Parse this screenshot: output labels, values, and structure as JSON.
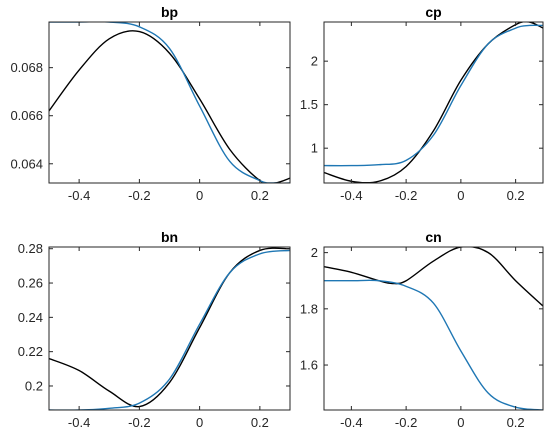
{
  "colors": {
    "black_series": "#000000",
    "blue_series": "#1f77b4",
    "axes": "#262626"
  },
  "chart_data": [
    {
      "type": "line",
      "title": "bp",
      "xlim": [
        -0.5,
        0.3
      ],
      "ylim": [
        0.0632,
        0.0699
      ],
      "xticks": [
        -0.4,
        -0.2,
        0,
        0.2
      ],
      "xtick_labels": [
        "-0.4",
        "-0.2",
        "0",
        "0.2"
      ],
      "yticks": [
        0.064,
        0.066,
        0.068
      ],
      "ytick_labels": [
        "0.064",
        "0.066",
        "0.068"
      ],
      "series": [
        {
          "color": "#000000",
          "x": [
            -0.5,
            -0.4,
            -0.3,
            -0.2,
            -0.1,
            0,
            0.1,
            0.2,
            0.25,
            0.3
          ],
          "y": [
            0.0662,
            0.0679,
            0.0692,
            0.0695,
            0.0686,
            0.0667,
            0.0646,
            0.0633,
            0.0632,
            0.0634
          ]
        },
        {
          "color": "#1f77b4",
          "x": [
            -0.5,
            -0.4,
            -0.3,
            -0.2,
            -0.1,
            0,
            0.1,
            0.2,
            0.25,
            0.3
          ],
          "y": [
            0.0699,
            0.0699,
            0.0699,
            0.0697,
            0.0688,
            0.0664,
            0.0641,
            0.0633,
            0.0632,
            0.0632
          ]
        }
      ]
    },
    {
      "type": "line",
      "title": "cp",
      "xlim": [
        -0.5,
        0.3
      ],
      "ylim": [
        0.6,
        2.45
      ],
      "xticks": [
        -0.4,
        -0.2,
        0,
        0.2
      ],
      "xtick_labels": [
        "-0.4",
        "-0.2",
        "0",
        "0.2"
      ],
      "yticks": [
        1,
        1.5,
        2
      ],
      "ytick_labels": [
        "1",
        "1.5",
        "2"
      ],
      "series": [
        {
          "color": "#000000",
          "x": [
            -0.5,
            -0.4,
            -0.3,
            -0.2,
            -0.1,
            0,
            0.1,
            0.2,
            0.25,
            0.3
          ],
          "y": [
            0.72,
            0.62,
            0.62,
            0.79,
            1.2,
            1.78,
            2.2,
            2.42,
            2.45,
            2.38
          ]
        },
        {
          "color": "#1f77b4",
          "x": [
            -0.5,
            -0.4,
            -0.3,
            -0.2,
            -0.1,
            0,
            0.1,
            0.2,
            0.25,
            0.3
          ],
          "y": [
            0.8,
            0.8,
            0.81,
            0.86,
            1.15,
            1.72,
            2.2,
            2.38,
            2.41,
            2.41
          ]
        }
      ]
    },
    {
      "type": "line",
      "title": "bn",
      "xlim": [
        -0.5,
        0.3
      ],
      "ylim": [
        0.186,
        0.281
      ],
      "xticks": [
        -0.4,
        -0.2,
        0,
        0.2
      ],
      "xtick_labels": [
        "-0.4",
        "-0.2",
        "0",
        "0.2"
      ],
      "yticks": [
        0.2,
        0.22,
        0.24,
        0.26,
        0.28
      ],
      "ytick_labels": [
        "0.2",
        "0.22",
        "0.24",
        "0.26",
        "0.28"
      ],
      "series": [
        {
          "color": "#000000",
          "x": [
            -0.5,
            -0.4,
            -0.3,
            -0.2,
            -0.1,
            0,
            0.1,
            0.2,
            0.3
          ],
          "y": [
            0.216,
            0.209,
            0.197,
            0.188,
            0.202,
            0.234,
            0.266,
            0.279,
            0.28
          ]
        },
        {
          "color": "#1f77b4",
          "x": [
            -0.5,
            -0.4,
            -0.3,
            -0.2,
            -0.1,
            0,
            0.1,
            0.2,
            0.3
          ],
          "y": [
            0.186,
            0.186,
            0.187,
            0.19,
            0.204,
            0.236,
            0.266,
            0.277,
            0.279
          ]
        }
      ]
    },
    {
      "type": "line",
      "title": "cn",
      "xlim": [
        -0.5,
        0.3
      ],
      "ylim": [
        1.44,
        2.02
      ],
      "xticks": [
        -0.4,
        -0.2,
        0,
        0.2
      ],
      "xtick_labels": [
        "-0.4",
        "-0.2",
        "0",
        "0.2"
      ],
      "yticks": [
        1.6,
        1.8,
        2
      ],
      "ytick_labels": [
        "1.6",
        "1.8",
        "2"
      ],
      "series": [
        {
          "color": "#000000",
          "x": [
            -0.5,
            -0.4,
            -0.3,
            -0.25,
            -0.2,
            -0.1,
            0,
            0.1,
            0.2,
            0.3
          ],
          "y": [
            1.95,
            1.93,
            1.9,
            1.89,
            1.9,
            1.97,
            2.02,
            2.0,
            1.9,
            1.81
          ]
        },
        {
          "color": "#1f77b4",
          "x": [
            -0.5,
            -0.4,
            -0.3,
            -0.2,
            -0.1,
            0,
            0.1,
            0.2,
            0.3
          ],
          "y": [
            1.9,
            1.9,
            1.9,
            1.88,
            1.82,
            1.65,
            1.5,
            1.45,
            1.44
          ]
        }
      ]
    }
  ]
}
